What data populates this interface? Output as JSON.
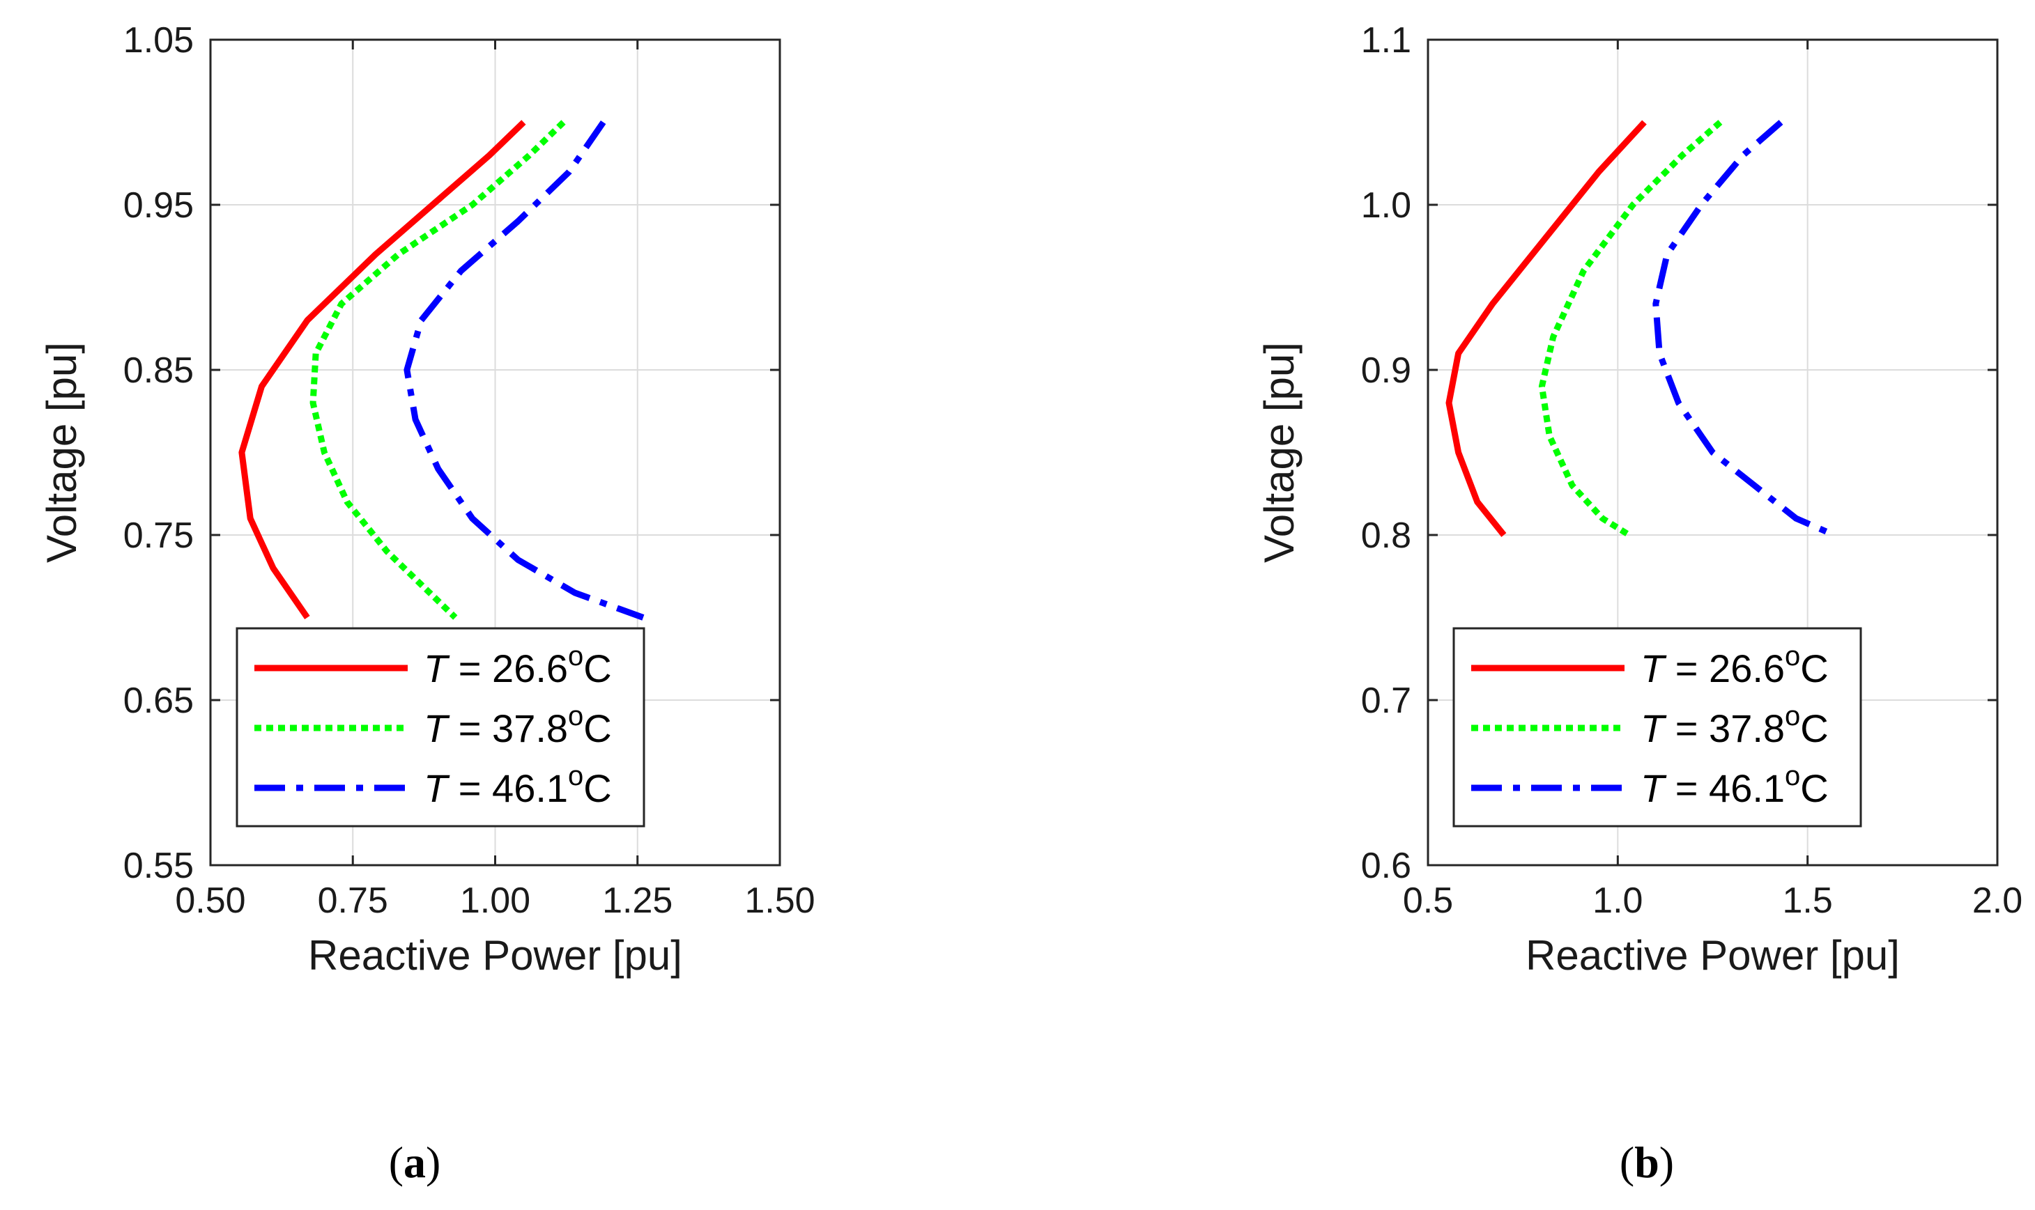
{
  "chart_data": [
    {
      "type": "line",
      "panel_label": "a",
      "xlabel": "Reactive Power [pu]",
      "ylabel": "Voltage [pu]",
      "xlim": [
        0.5,
        1.5
      ],
      "ylim": [
        0.55,
        1.05
      ],
      "xticks": [
        0.5,
        0.75,
        1.0,
        1.25,
        1.5
      ],
      "xtick_labels": [
        "0.50",
        "0.75",
        "1.00",
        "1.25",
        "1.50"
      ],
      "yticks": [
        0.55,
        0.65,
        0.75,
        0.85,
        0.95,
        1.05
      ],
      "ytick_labels": [
        "0.55",
        "0.65",
        "0.75",
        "0.85",
        "0.95",
        "1.05"
      ],
      "grid": true,
      "legend_position": "bottom-left",
      "series": [
        {
          "name": "26.6",
          "legend": {
            "var": "T",
            "eq": " = ",
            "value": "26.6",
            "sup": "o",
            "unit": "C"
          },
          "color": "#ff0000",
          "style": "solid",
          "points": [
            [
              1.05,
              1.0
            ],
            [
              0.99,
              0.98
            ],
            [
              0.89,
              0.95
            ],
            [
              0.79,
              0.92
            ],
            [
              0.67,
              0.88
            ],
            [
              0.59,
              0.84
            ],
            [
              0.555,
              0.8
            ],
            [
              0.57,
              0.76
            ],
            [
              0.61,
              0.73
            ],
            [
              0.67,
              0.7
            ]
          ]
        },
        {
          "name": "37.8",
          "legend": {
            "var": "T",
            "eq": " = ",
            "value": "37.8",
            "sup": "o",
            "unit": "C"
          },
          "color": "#00ff00",
          "style": "dotted",
          "points": [
            [
              1.12,
              1.0
            ],
            [
              1.06,
              0.98
            ],
            [
              0.96,
              0.95
            ],
            [
              0.83,
              0.92
            ],
            [
              0.73,
              0.89
            ],
            [
              0.685,
              0.86
            ],
            [
              0.68,
              0.83
            ],
            [
              0.7,
              0.8
            ],
            [
              0.74,
              0.77
            ],
            [
              0.81,
              0.74
            ],
            [
              0.93,
              0.7
            ]
          ]
        },
        {
          "name": "46.1",
          "legend": {
            "var": "T",
            "eq": " = ",
            "value": "46.1",
            "sup": "o",
            "unit": "C"
          },
          "color": "#0000ff",
          "style": "dashdot",
          "points": [
            [
              1.19,
              1.0
            ],
            [
              1.13,
              0.97
            ],
            [
              1.04,
              0.94
            ],
            [
              0.94,
              0.91
            ],
            [
              0.87,
              0.88
            ],
            [
              0.845,
              0.85
            ],
            [
              0.86,
              0.82
            ],
            [
              0.9,
              0.79
            ],
            [
              0.96,
              0.76
            ],
            [
              1.04,
              0.735
            ],
            [
              1.14,
              0.715
            ],
            [
              1.26,
              0.7
            ]
          ]
        }
      ]
    },
    {
      "type": "line",
      "panel_label": "b",
      "xlabel": "Reactive Power [pu]",
      "ylabel": "Voltage [pu]",
      "xlim": [
        0.5,
        2.0
      ],
      "ylim": [
        0.6,
        1.1
      ],
      "xticks": [
        0.5,
        1.0,
        1.5,
        2.0
      ],
      "xtick_labels": [
        "0.5",
        "1.0",
        "1.5",
        "2.0"
      ],
      "yticks": [
        0.6,
        0.7,
        0.8,
        0.9,
        1.0,
        1.1
      ],
      "ytick_labels": [
        "0.6",
        "0.7",
        "0.8",
        "0.9",
        "1.0",
        "1.1"
      ],
      "grid": true,
      "legend_position": "bottom-left",
      "series": [
        {
          "name": "26.6",
          "legend": {
            "var": "T",
            "eq": " = ",
            "value": "26.6",
            "sup": "o",
            "unit": "C"
          },
          "color": "#ff0000",
          "style": "solid",
          "points": [
            [
              1.07,
              1.05
            ],
            [
              0.95,
              1.02
            ],
            [
              0.81,
              0.98
            ],
            [
              0.67,
              0.94
            ],
            [
              0.58,
              0.91
            ],
            [
              0.555,
              0.88
            ],
            [
              0.58,
              0.85
            ],
            [
              0.63,
              0.82
            ],
            [
              0.7,
              0.8
            ]
          ]
        },
        {
          "name": "37.8",
          "legend": {
            "var": "T",
            "eq": " = ",
            "value": "37.8",
            "sup": "o",
            "unit": "C"
          },
          "color": "#00ff00",
          "style": "dotted",
          "points": [
            [
              1.27,
              1.05
            ],
            [
              1.17,
              1.03
            ],
            [
              1.04,
              1.0
            ],
            [
              0.91,
              0.96
            ],
            [
              0.83,
              0.92
            ],
            [
              0.8,
              0.89
            ],
            [
              0.82,
              0.86
            ],
            [
              0.88,
              0.83
            ],
            [
              0.96,
              0.81
            ],
            [
              1.03,
              0.8
            ]
          ]
        },
        {
          "name": "46.1",
          "legend": {
            "var": "T",
            "eq": " = ",
            "value": "46.1",
            "sup": "o",
            "unit": "C"
          },
          "color": "#0000ff",
          "style": "dashdot",
          "points": [
            [
              1.43,
              1.05
            ],
            [
              1.33,
              1.03
            ],
            [
              1.22,
              1.0
            ],
            [
              1.13,
              0.97
            ],
            [
              1.1,
              0.94
            ],
            [
              1.11,
              0.91
            ],
            [
              1.16,
              0.88
            ],
            [
              1.25,
              0.85
            ],
            [
              1.36,
              0.83
            ],
            [
              1.47,
              0.81
            ],
            [
              1.57,
              0.8
            ]
          ]
        }
      ]
    }
  ]
}
